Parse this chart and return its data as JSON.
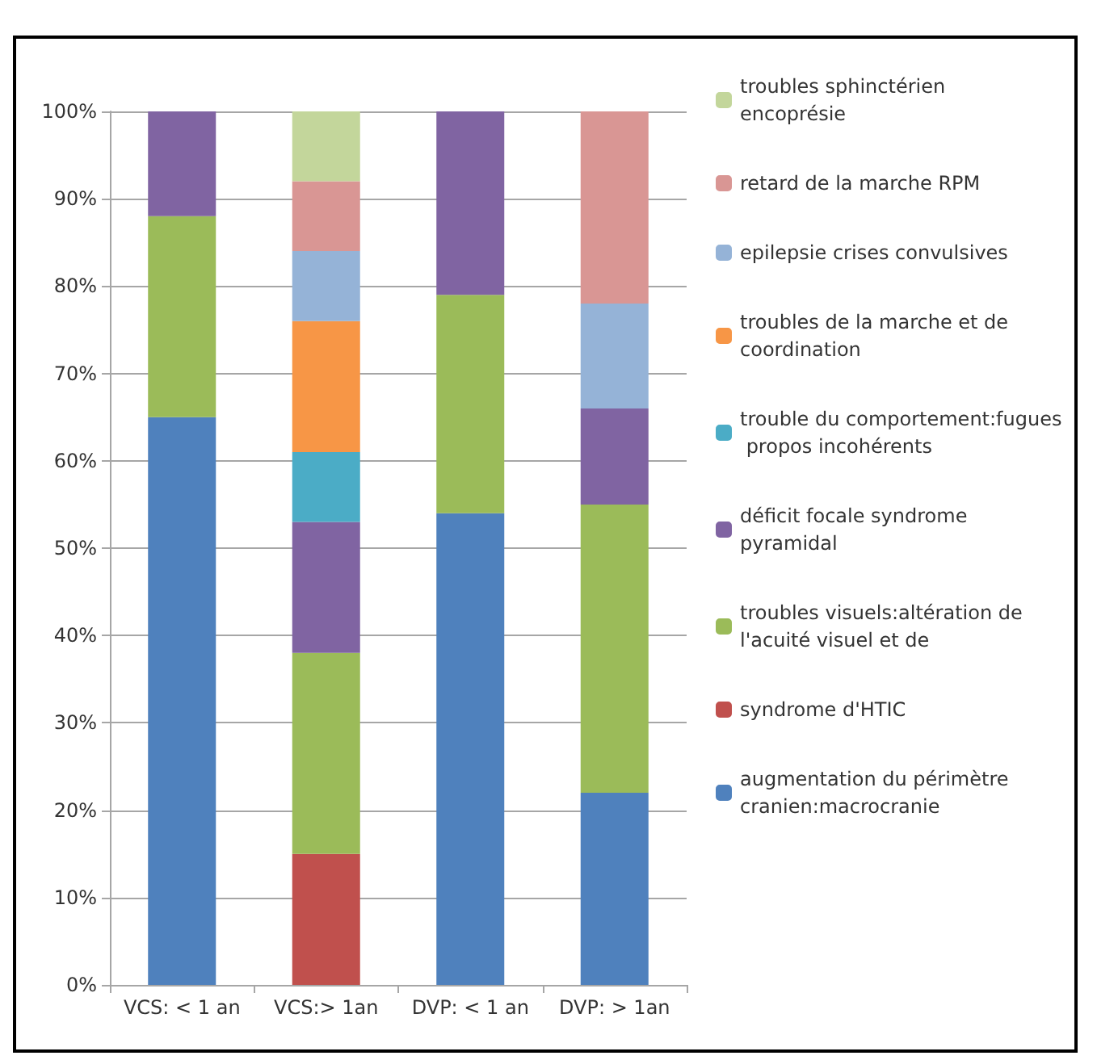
{
  "chart_data": {
    "type": "bar",
    "stacked": true,
    "categories": [
      "VCS: < 1 an",
      "VCS:> 1an",
      "DVP: < 1 an",
      "DVP: > 1an"
    ],
    "series": [
      {
        "name": "augmentation du périmètre cranien:macrocranie",
        "color": "#4f81bd",
        "values": [
          65,
          0,
          54,
          22
        ]
      },
      {
        "name": "syndrome d'HTIC",
        "color": "#c0504d",
        "values": [
          0,
          15,
          0,
          0
        ]
      },
      {
        "name": "troubles visuels:altération de l'acuité visuel et de",
        "color": "#9bbb59",
        "values": [
          23,
          23,
          25,
          33
        ]
      },
      {
        "name": "déficit focale syndrome pyramidal",
        "color": "#8064a2",
        "values": [
          12,
          15,
          21,
          11
        ]
      },
      {
        "name": "trouble du comportement:fugues propos incohérents",
        "color": "#4bacc6",
        "values": [
          0,
          8,
          0,
          0
        ]
      },
      {
        "name": "troubles de la marche et de coordination",
        "color": "#f79646",
        "values": [
          0,
          15,
          0,
          0
        ]
      },
      {
        "name": "epilepsie crises convulsives",
        "color": "#95b3d7",
        "values": [
          0,
          8,
          0,
          12
        ]
      },
      {
        "name": "retard de la marche RPM",
        "color": "#d99694",
        "values": [
          0,
          8,
          0,
          22
        ]
      },
      {
        "name": "troubles sphinctérien encoprésie",
        "color": "#c3d69b",
        "values": [
          0,
          8,
          0,
          0
        ]
      }
    ],
    "ylim": [
      0,
      100
    ],
    "yticks": [
      {
        "value": 0,
        "label": "0%"
      },
      {
        "value": 10,
        "label": "10%"
      },
      {
        "value": 20,
        "label": "20%"
      },
      {
        "value": 30,
        "label": "30%"
      },
      {
        "value": 40,
        "label": "40%"
      },
      {
        "value": 50,
        "label": "50%"
      },
      {
        "value": 60,
        "label": "60%"
      },
      {
        "value": 70,
        "label": "70%"
      },
      {
        "value": 80,
        "label": "80%"
      },
      {
        "value": 90,
        "label": "90%"
      },
      {
        "value": 100,
        "label": "100%"
      }
    ],
    "grid": "y",
    "legend": "right"
  }
}
